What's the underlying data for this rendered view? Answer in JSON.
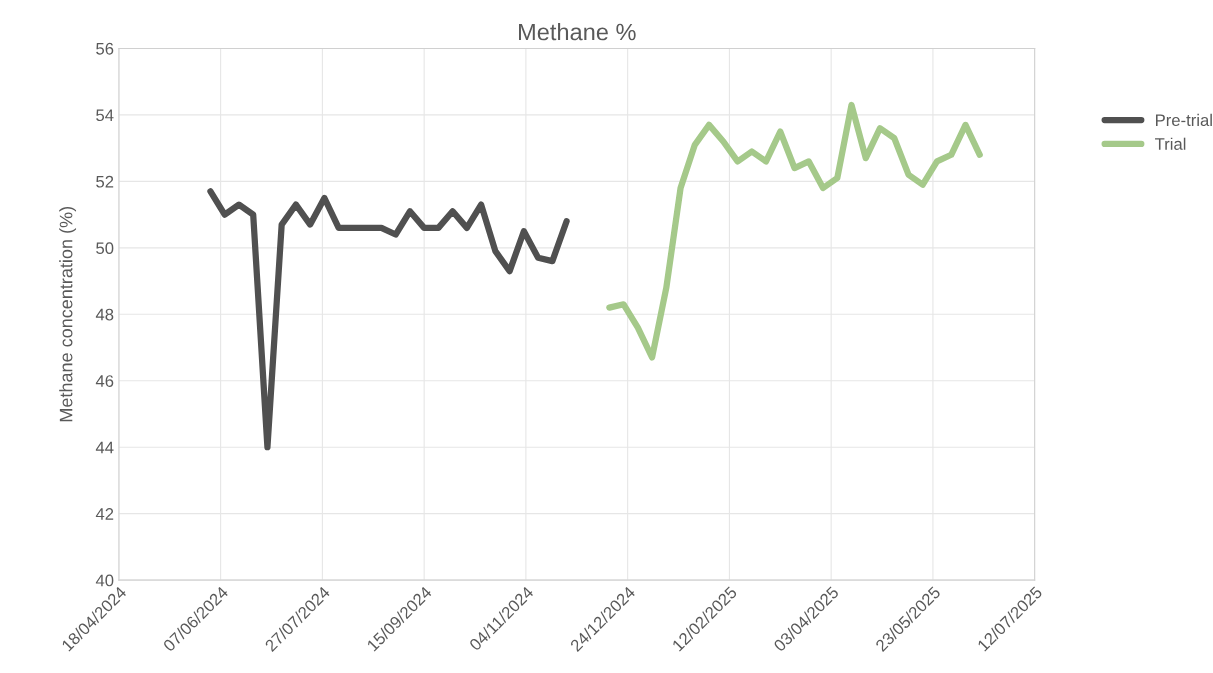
{
  "chart_data": {
    "type": "line",
    "title": "Methane %",
    "ylabel": "Methane concentration (%)",
    "ylim": [
      40,
      56
    ],
    "yticks": [
      40,
      42,
      44,
      46,
      48,
      50,
      52,
      54,
      56
    ],
    "xlim": [
      "2024-04-18",
      "2025-07-12"
    ],
    "xticks": [
      {
        "value": "2024-04-18",
        "label": "18/04/2024"
      },
      {
        "value": "2024-06-07",
        "label": "07/06/2024"
      },
      {
        "value": "2024-07-27",
        "label": "27/07/2024"
      },
      {
        "value": "2024-09-15",
        "label": "15/09/2024"
      },
      {
        "value": "2024-11-04",
        "label": "04/11/2024"
      },
      {
        "value": "2024-12-24",
        "label": "24/12/2024"
      },
      {
        "value": "2025-02-12",
        "label": "12/02/2025"
      },
      {
        "value": "2025-04-03",
        "label": "03/04/2025"
      },
      {
        "value": "2025-05-23",
        "label": "23/05/2025"
      },
      {
        "value": "2025-07-12",
        "label": "12/07/2025"
      }
    ],
    "grid": true,
    "legend": "right",
    "marker": "none",
    "line_style": "solid",
    "series": [
      {
        "name": "Pre-trial",
        "color": "#505050",
        "x": [
          "2024-06-02",
          "2024-06-09",
          "2024-06-16",
          "2024-06-23",
          "2024-06-30",
          "2024-07-07",
          "2024-07-14",
          "2024-07-21",
          "2024-07-28",
          "2024-08-04",
          "2024-08-11",
          "2024-08-18",
          "2024-08-25",
          "2024-09-01",
          "2024-09-08",
          "2024-09-15",
          "2024-09-22",
          "2024-09-29",
          "2024-10-06",
          "2024-10-13",
          "2024-10-20",
          "2024-10-27",
          "2024-11-03",
          "2024-11-10",
          "2024-11-17",
          "2024-11-24"
        ],
        "values": [
          51.7,
          51.0,
          51.3,
          51.0,
          44.0,
          50.7,
          51.3,
          50.7,
          51.5,
          50.6,
          50.6,
          50.6,
          50.6,
          50.4,
          51.1,
          50.6,
          50.6,
          51.1,
          50.6,
          51.3,
          49.9,
          49.3,
          50.5,
          49.7,
          49.6,
          50.8
        ]
      },
      {
        "name": "Trial",
        "color": "#a5c98a",
        "x": [
          "2024-12-15",
          "2024-12-22",
          "2024-12-29",
          "2025-01-05",
          "2025-01-12",
          "2025-01-19",
          "2025-01-26",
          "2025-02-02",
          "2025-02-09",
          "2025-02-16",
          "2025-02-23",
          "2025-03-02",
          "2025-03-09",
          "2025-03-16",
          "2025-03-23",
          "2025-03-30",
          "2025-04-06",
          "2025-04-13",
          "2025-04-20",
          "2025-04-27",
          "2025-05-04",
          "2025-05-11",
          "2025-05-18",
          "2025-05-25",
          "2025-06-01",
          "2025-06-08",
          "2025-06-15"
        ],
        "values": [
          48.2,
          48.3,
          47.6,
          46.7,
          48.8,
          51.8,
          53.1,
          53.7,
          53.2,
          52.6,
          52.9,
          52.6,
          53.5,
          52.4,
          52.6,
          51.8,
          52.1,
          54.3,
          52.7,
          53.6,
          53.3,
          52.2,
          51.9,
          52.6,
          52.8,
          53.7,
          52.8
        ]
      }
    ]
  }
}
